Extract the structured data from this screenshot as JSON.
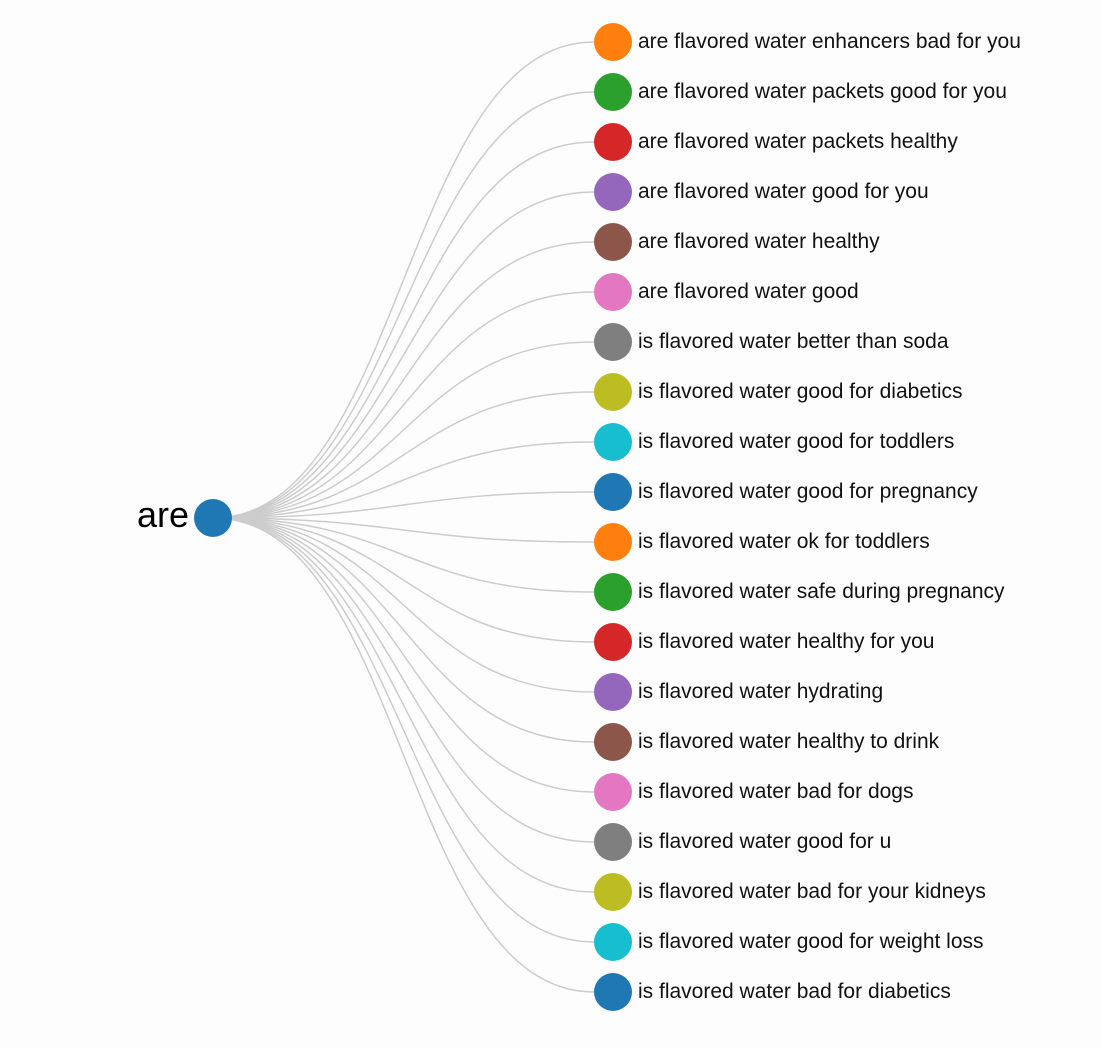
{
  "root": {
    "label": "are",
    "color": "#1f77b4"
  },
  "palette": [
    "#ff7f0e",
    "#2ca02c",
    "#d62728",
    "#9467bd",
    "#8c564b",
    "#e377c2",
    "#7f7f7f",
    "#bcbd22",
    "#17becf",
    "#1f77b4"
  ],
  "link_color": "#cccccc",
  "suggestions": [
    {
      "label": "are flavored water enhancers bad for you",
      "color": "#ff7f0e"
    },
    {
      "label": "are flavored water packets good for you",
      "color": "#2ca02c"
    },
    {
      "label": "are flavored water packets healthy",
      "color": "#d62728"
    },
    {
      "label": "are flavored water good for you",
      "color": "#9467bd"
    },
    {
      "label": "are flavored water healthy",
      "color": "#8c564b"
    },
    {
      "label": "are flavored water good",
      "color": "#e377c2"
    },
    {
      "label": "is flavored water better than soda",
      "color": "#7f7f7f"
    },
    {
      "label": "is flavored water good for diabetics",
      "color": "#bcbd22"
    },
    {
      "label": "is flavored water good for toddlers",
      "color": "#17becf"
    },
    {
      "label": "is flavored water good for pregnancy",
      "color": "#1f77b4"
    },
    {
      "label": "is flavored water ok for toddlers",
      "color": "#ff7f0e"
    },
    {
      "label": "is flavored water safe during pregnancy",
      "color": "#2ca02c"
    },
    {
      "label": "is flavored water healthy for you",
      "color": "#d62728"
    },
    {
      "label": "is flavored water hydrating",
      "color": "#9467bd"
    },
    {
      "label": "is flavored water healthy to drink",
      "color": "#8c564b"
    },
    {
      "label": "is flavored water bad for dogs",
      "color": "#e377c2"
    },
    {
      "label": "is flavored water good for u",
      "color": "#7f7f7f"
    },
    {
      "label": "is flavored water bad for your kidneys",
      "color": "#bcbd22"
    },
    {
      "label": "is flavored water good for weight loss",
      "color": "#17becf"
    },
    {
      "label": "is flavored water bad for diabetics",
      "color": "#1f77b4"
    }
  ]
}
